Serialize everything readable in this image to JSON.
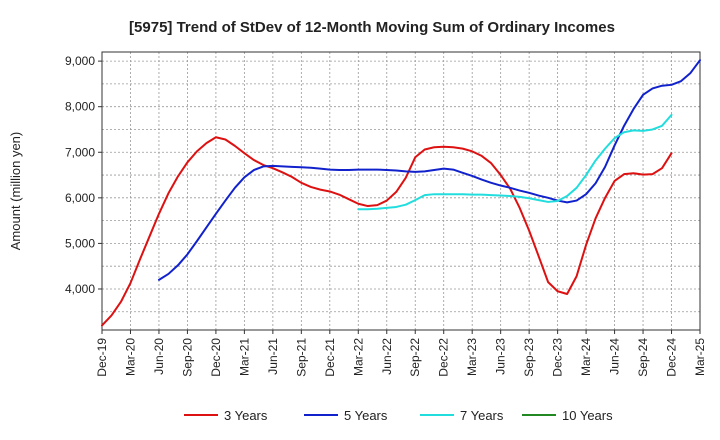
{
  "chart_data": {
    "type": "line",
    "title": "[5975]  Trend of StDev of 12-Month Moving Sum of Ordinary Incomes",
    "xlabel": "",
    "ylabel": "Amount (million yen)",
    "ylim": [
      3100,
      9200
    ],
    "yticks": [
      4000,
      5000,
      6000,
      7000,
      8000,
      9000
    ],
    "ytick_labels": [
      "4,000",
      "5,000",
      "6,000",
      "7,000",
      "8,000",
      "9,000"
    ],
    "xtick_labels": [
      "Dec-19",
      "Mar-20",
      "Jun-20",
      "Sep-20",
      "Dec-20",
      "Mar-21",
      "Jun-21",
      "Sep-21",
      "Dec-21",
      "Mar-22",
      "Jun-22",
      "Sep-22",
      "Dec-22",
      "Mar-23",
      "Jun-23",
      "Sep-23",
      "Dec-23",
      "Mar-24",
      "Jun-24",
      "Sep-24",
      "Dec-24",
      "Mar-25"
    ],
    "grid": true,
    "legend_position": "bottom",
    "series": [
      {
        "name": "3 Years",
        "color": "#dd1111",
        "start_index": 0,
        "values": [
          3200,
          3420,
          3720,
          4130,
          4650,
          5150,
          5650,
          6100,
          6470,
          6780,
          7020,
          7200,
          7330,
          7280,
          7140,
          6980,
          6830,
          6720,
          6650,
          6560,
          6460,
          6330,
          6240,
          6180,
          6140,
          6070,
          5970,
          5870,
          5820,
          5840,
          5940,
          6130,
          6440,
          6890,
          7060,
          7110,
          7120,
          7110,
          7080,
          7020,
          6920,
          6760,
          6500,
          6200,
          5780,
          5280,
          4720,
          4150,
          3950,
          3890,
          4280,
          4970,
          5550,
          6000,
          6370,
          6520,
          6540,
          6510,
          6520,
          6650,
          6980
        ]
      },
      {
        "name": "5 Years",
        "color": "#1122cc",
        "start_index": 6,
        "values": [
          4200,
          4330,
          4520,
          4760,
          5050,
          5350,
          5650,
          5940,
          6220,
          6450,
          6610,
          6690,
          6700,
          6690,
          6680,
          6670,
          6660,
          6640,
          6620,
          6610,
          6610,
          6620,
          6620,
          6620,
          6610,
          6600,
          6580,
          6570,
          6580,
          6610,
          6640,
          6620,
          6550,
          6480,
          6400,
          6330,
          6270,
          6220,
          6160,
          6110,
          6050,
          6000,
          5940,
          5900,
          5940,
          6080,
          6320,
          6680,
          7150,
          7580,
          7950,
          8260,
          8400,
          8460,
          8480,
          8560,
          8740,
          9020
        ]
      },
      {
        "name": "7 Years",
        "color": "#22dddd",
        "start_index": 27,
        "values": [
          5750,
          5750,
          5760,
          5780,
          5800,
          5850,
          5950,
          6060,
          6080,
          6080,
          6080,
          6080,
          6070,
          6070,
          6060,
          6050,
          6040,
          6020,
          5990,
          5950,
          5910,
          5930,
          6040,
          6220,
          6500,
          6820,
          7080,
          7310,
          7440,
          7480,
          7470,
          7500,
          7580,
          7820
        ]
      },
      {
        "name": "10 Years",
        "color": "#228822",
        "start_index": 0,
        "values": []
      }
    ]
  }
}
